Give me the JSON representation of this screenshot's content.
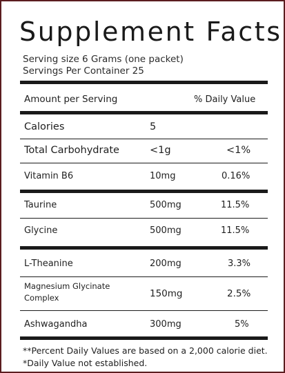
{
  "label": {
    "title": "Supplement Facts",
    "serving_size": "Serving size 6 Grams (one packet)",
    "servings_per_container": "Servings Per Container 25"
  },
  "table": {
    "header": {
      "amount": "Amount per Serving",
      "daily_value": "% Daily Value"
    },
    "rows": [
      {
        "name": "Calories",
        "amount": "5",
        "dv": ""
      },
      {
        "name": "Total Carbohydrate",
        "amount": "<1g",
        "dv": "<1%"
      },
      {
        "name": "Vitamin B6",
        "amount": "10mg",
        "dv": "0.16%"
      },
      {
        "name": "Taurine",
        "amount": "500mg",
        "dv": "11.5%"
      },
      {
        "name": "Glycine",
        "amount": "500mg",
        "dv": "11.5%"
      },
      {
        "name": "L-Theanine",
        "amount": "200mg",
        "dv": "3.3%"
      },
      {
        "name_line1": "Magnesium Glycinate",
        "name_line2": "Complex",
        "amount": "150mg",
        "dv": "2.5%"
      },
      {
        "name": "Ashwagandha",
        "amount": "300mg",
        "dv": "5%"
      }
    ]
  },
  "footnotes": {
    "percent_note": "**Percent Daily Values are based on a 2,000 calorie diet.",
    "dv_note": "*Daily Value not established."
  },
  "colors": {
    "border": "#5b1d1f",
    "ink": "#1a1a1a"
  }
}
